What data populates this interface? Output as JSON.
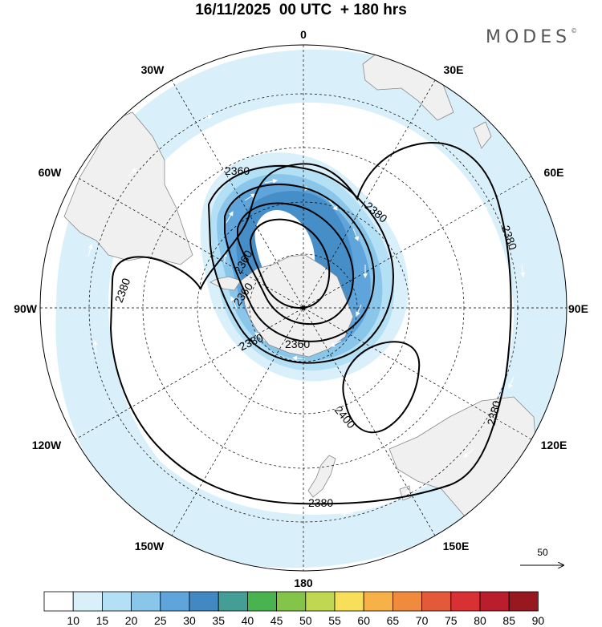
{
  "header": {
    "title": "16/11/2025  00 UTC  + 180 hrs",
    "brand": "MODES",
    "brand_mark": "©"
  },
  "map": {
    "projection": "south-polar-stereographic",
    "longitude_labels": [
      "0",
      "30E",
      "60E",
      "90E",
      "120E",
      "150E",
      "180",
      "150W",
      "120W",
      "90W",
      "60W",
      "30W"
    ],
    "contour_labels": [
      "2360",
      "2360",
      "2360",
      "2360",
      "2380",
      "2380",
      "2380",
      "2380",
      "2380",
      "2380",
      "2400"
    ],
    "wind_reference_label": "50",
    "colors": {
      "land": "#f0f0f0",
      "contour": "#000000",
      "graticule": "#000000"
    }
  },
  "colorbar": {
    "ticks": [
      "10",
      "15",
      "20",
      "25",
      "30",
      "35",
      "40",
      "45",
      "50",
      "55",
      "60",
      "65",
      "70",
      "75",
      "80",
      "85",
      "90"
    ],
    "colors": [
      "#ffffff",
      "#d9f0fb",
      "#b3e0f5",
      "#8ac5ea",
      "#5fa5db",
      "#4289c4",
      "#449e96",
      "#49b44f",
      "#84c44a",
      "#bfd751",
      "#f7df5a",
      "#f6b248",
      "#f08a3c",
      "#e4593a",
      "#d83033",
      "#ba1e2c",
      "#97191f"
    ]
  }
}
